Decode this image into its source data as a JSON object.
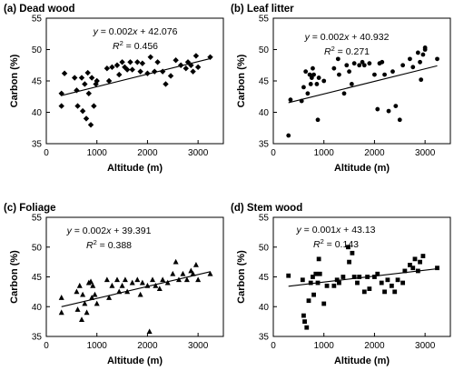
{
  "chart_data": [
    {
      "type": "scatter",
      "panel_label": "(a)",
      "title": "Dead wood",
      "xlabel": "Altitude (m)",
      "ylabel": "Carbon (%)",
      "xlim": [
        0,
        3500
      ],
      "ylim": [
        35,
        55
      ],
      "xticks": [
        0,
        1000,
        2000,
        3000
      ],
      "yticks": [
        35,
        40,
        45,
        50,
        55
      ],
      "marker": "diamond",
      "equation": "y = 0.002x + 42.076",
      "r2": "R2 = 0.456",
      "trendline": {
        "slope": 0.002,
        "intercept": 42.076
      },
      "points": [
        [
          300,
          43.0
        ],
        [
          300,
          41.0
        ],
        [
          360,
          46.2
        ],
        [
          560,
          45.5
        ],
        [
          600,
          43.5
        ],
        [
          620,
          41.0
        ],
        [
          700,
          45.5
        ],
        [
          720,
          40.2
        ],
        [
          760,
          44.5
        ],
        [
          790,
          39.0
        ],
        [
          820,
          46.3
        ],
        [
          840,
          43.0
        ],
        [
          880,
          38.0
        ],
        [
          900,
          45.5
        ],
        [
          940,
          41.0
        ],
        [
          980,
          44.5
        ],
        [
          1000,
          45.0
        ],
        [
          1200,
          47.0
        ],
        [
          1240,
          45.0
        ],
        [
          1300,
          47.2
        ],
        [
          1400,
          47.5
        ],
        [
          1440,
          46.0
        ],
        [
          1500,
          48.0
        ],
        [
          1550,
          47.2
        ],
        [
          1600,
          46.8
        ],
        [
          1660,
          48.0
        ],
        [
          1700,
          46.8
        ],
        [
          1800,
          48.0
        ],
        [
          1860,
          46.5
        ],
        [
          1900,
          47.8
        ],
        [
          2000,
          46.2
        ],
        [
          2060,
          48.8
        ],
        [
          2140,
          46.5
        ],
        [
          2200,
          48.0
        ],
        [
          2300,
          46.5
        ],
        [
          2360,
          44.5
        ],
        [
          2460,
          45.8
        ],
        [
          2560,
          48.3
        ],
        [
          2660,
          47.5
        ],
        [
          2760,
          47.0
        ],
        [
          2800,
          48.0
        ],
        [
          2860,
          47.5
        ],
        [
          2900,
          46.5
        ],
        [
          2960,
          49.0
        ],
        [
          3000,
          47.2
        ],
        [
          3240,
          48.8
        ]
      ]
    },
    {
      "type": "scatter",
      "panel_label": "(b)",
      "title": "Leaf litter",
      "xlabel": "Altitude (m)",
      "ylabel": "Carbon (%)",
      "xlim": [
        0,
        3500
      ],
      "ylim": [
        35,
        55
      ],
      "xticks": [
        0,
        1000,
        2000,
        3000
      ],
      "yticks": [
        35,
        40,
        45,
        50,
        55
      ],
      "marker": "circle",
      "equation": "y = 0.002x + 40.932",
      "r2": "R2 = 0.271",
      "trendline": {
        "slope": 0.002,
        "intercept": 40.932
      },
      "points": [
        [
          300,
          36.3
        ],
        [
          340,
          42.0
        ],
        [
          560,
          41.8
        ],
        [
          600,
          44.0
        ],
        [
          640,
          46.5
        ],
        [
          680,
          43.0
        ],
        [
          720,
          46.0
        ],
        [
          740,
          44.5
        ],
        [
          760,
          45.5
        ],
        [
          780,
          47.0
        ],
        [
          800,
          46.0
        ],
        [
          860,
          44.5
        ],
        [
          880,
          38.8
        ],
        [
          900,
          45.5
        ],
        [
          1000,
          45.0
        ],
        [
          1200,
          47.0
        ],
        [
          1280,
          48.5
        ],
        [
          1300,
          46.0
        ],
        [
          1400,
          43.0
        ],
        [
          1450,
          47.5
        ],
        [
          1500,
          46.5
        ],
        [
          1550,
          44.5
        ],
        [
          1600,
          47.8
        ],
        [
          1700,
          47.5
        ],
        [
          1760,
          48.0
        ],
        [
          1800,
          47.5
        ],
        [
          1900,
          47.8
        ],
        [
          2000,
          46.0
        ],
        [
          2060,
          40.5
        ],
        [
          2100,
          47.8
        ],
        [
          2150,
          48.0
        ],
        [
          2200,
          46.0
        ],
        [
          2280,
          40.2
        ],
        [
          2360,
          46.5
        ],
        [
          2420,
          41.0
        ],
        [
          2500,
          38.8
        ],
        [
          2560,
          47.5
        ],
        [
          2700,
          48.5
        ],
        [
          2760,
          47.2
        ],
        [
          2860,
          49.5
        ],
        [
          2900,
          48.0
        ],
        [
          2920,
          45.2
        ],
        [
          2960,
          49.2
        ],
        [
          3000,
          50.0
        ],
        [
          3000,
          50.3
        ],
        [
          3240,
          48.5
        ]
      ]
    },
    {
      "type": "scatter",
      "panel_label": "(c)",
      "title": "Foliage",
      "xlabel": "Altitude (m)",
      "ylabel": "Carbon (%)",
      "xlim": [
        0,
        3500
      ],
      "ylim": [
        35,
        55
      ],
      "xticks": [
        0,
        1000,
        2000,
        3000
      ],
      "yticks": [
        35,
        40,
        45,
        50,
        55
      ],
      "marker": "triangle",
      "equation": "y = 0.002x + 39.391",
      "r2": "R2 = 0.388",
      "trendline": {
        "slope": 0.002,
        "intercept": 39.391
      },
      "points": [
        [
          300,
          41.5
        ],
        [
          300,
          39.0
        ],
        [
          600,
          42.5
        ],
        [
          620,
          39.5
        ],
        [
          660,
          43.5
        ],
        [
          700,
          37.8
        ],
        [
          720,
          42.0
        ],
        [
          760,
          40.5
        ],
        [
          800,
          39.0
        ],
        [
          840,
          44.0
        ],
        [
          880,
          44.2
        ],
        [
          900,
          41.5
        ],
        [
          920,
          43.5
        ],
        [
          960,
          42.0
        ],
        [
          1000,
          40.5
        ],
        [
          1200,
          44.5
        ],
        [
          1240,
          41.5
        ],
        [
          1300,
          43.5
        ],
        [
          1400,
          44.5
        ],
        [
          1440,
          42.5
        ],
        [
          1500,
          43.5
        ],
        [
          1560,
          44.5
        ],
        [
          1600,
          42.5
        ],
        [
          1700,
          44.0
        ],
        [
          1800,
          44.5
        ],
        [
          1860,
          42.0
        ],
        [
          1900,
          44.0
        ],
        [
          2000,
          43.5
        ],
        [
          2040,
          35.8
        ],
        [
          2100,
          44.5
        ],
        [
          2160,
          43.5
        ],
        [
          2240,
          43.0
        ],
        [
          2300,
          44.5
        ],
        [
          2400,
          44.0
        ],
        [
          2500,
          45.5
        ],
        [
          2560,
          47.5
        ],
        [
          2620,
          44.5
        ],
        [
          2700,
          45.5
        ],
        [
          2780,
          44.5
        ],
        [
          2860,
          46.0
        ],
        [
          2900,
          45.5
        ],
        [
          2960,
          47.0
        ],
        [
          3000,
          44.5
        ],
        [
          3240,
          45.5
        ]
      ]
    },
    {
      "type": "scatter",
      "panel_label": "(d)",
      "title": "Stem wood",
      "xlabel": "Altitude (m)",
      "ylabel": "Carbon (%)",
      "xlim": [
        0,
        3500
      ],
      "ylim": [
        35,
        55
      ],
      "xticks": [
        0,
        1000,
        2000,
        3000
      ],
      "yticks": [
        35,
        40,
        45,
        50,
        55
      ],
      "marker": "square",
      "equation": "y = 0.001x + 43.13",
      "r2": "R2 = 0.143",
      "trendline": {
        "slope": 0.001,
        "intercept": 43.13
      },
      "points": [
        [
          300,
          45.2
        ],
        [
          580,
          44.5
        ],
        [
          600,
          38.5
        ],
        [
          620,
          37.5
        ],
        [
          660,
          36.5
        ],
        [
          700,
          41.0
        ],
        [
          740,
          44.0
        ],
        [
          780,
          45.0
        ],
        [
          800,
          42.0
        ],
        [
          840,
          45.5
        ],
        [
          880,
          44.0
        ],
        [
          900,
          48.0
        ],
        [
          920,
          45.5
        ],
        [
          1000,
          40.5
        ],
        [
          1060,
          43.5
        ],
        [
          1200,
          43.5
        ],
        [
          1260,
          44.5
        ],
        [
          1300,
          44.0
        ],
        [
          1380,
          45.0
        ],
        [
          1480,
          50.0
        ],
        [
          1500,
          47.5
        ],
        [
          1560,
          49.0
        ],
        [
          1600,
          45.0
        ],
        [
          1660,
          44.0
        ],
        [
          1700,
          45.0
        ],
        [
          1800,
          42.5
        ],
        [
          1860,
          45.0
        ],
        [
          1900,
          43.0
        ],
        [
          2000,
          45.0
        ],
        [
          2060,
          45.5
        ],
        [
          2140,
          44.0
        ],
        [
          2200,
          42.5
        ],
        [
          2260,
          44.5
        ],
        [
          2340,
          43.5
        ],
        [
          2400,
          42.5
        ],
        [
          2460,
          44.5
        ],
        [
          2560,
          44.0
        ],
        [
          2600,
          46.0
        ],
        [
          2700,
          47.0
        ],
        [
          2760,
          46.5
        ],
        [
          2800,
          48.0
        ],
        [
          2860,
          46.0
        ],
        [
          2900,
          47.5
        ],
        [
          2960,
          48.5
        ],
        [
          3240,
          46.5
        ]
      ]
    }
  ]
}
